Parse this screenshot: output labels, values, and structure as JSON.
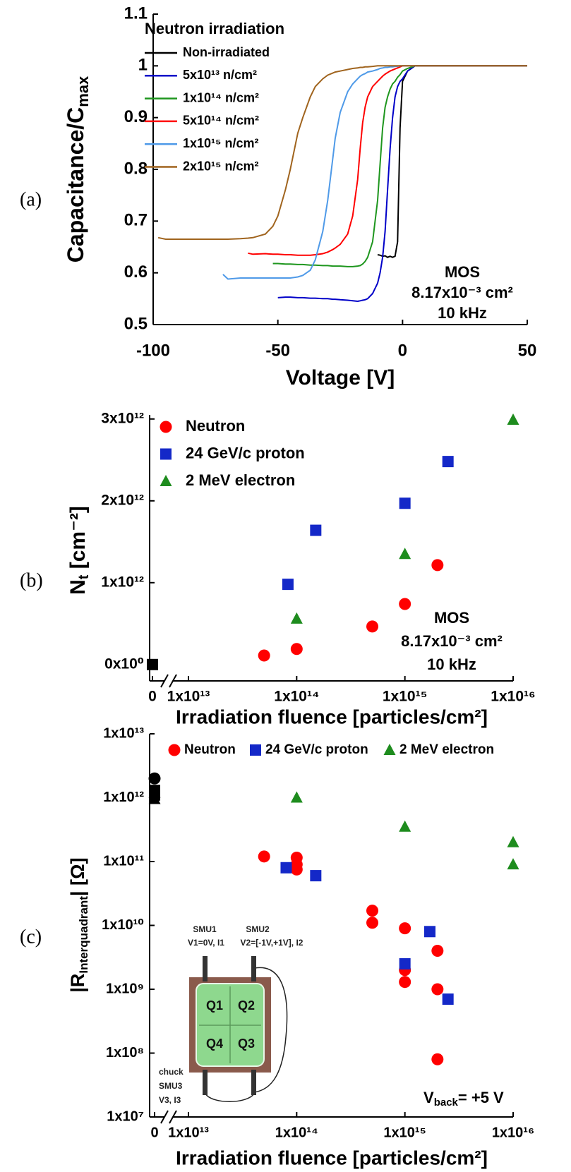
{
  "chart_data": [
    {
      "type": "line",
      "panel_label": "(a)",
      "xlabel": "Voltage [V]",
      "ylabel": [
        "Capacitance/C",
        "max"
      ],
      "legend_title": "Neutron irradiation",
      "legend": "upper left",
      "annotations": [
        "MOS",
        "8.17x10⁻³ cm²",
        "10 kHz"
      ],
      "xlim": [
        -100,
        50
      ],
      "xticks": [
        -100,
        -50,
        0,
        50
      ],
      "ylim": [
        0.5,
        1.1
      ],
      "yticks": [
        0.5,
        0.6,
        0.7,
        0.8,
        0.9,
        1,
        1.1
      ],
      "x": [
        -98,
        -95,
        -90,
        -85,
        -80,
        -75,
        -72,
        -70,
        -65,
        -62,
        -60,
        -55,
        -52,
        -50,
        -47,
        -45,
        -42,
        -40,
        -37,
        -35,
        -32,
        -30,
        -28,
        -27,
        -25,
        -22,
        -20,
        -18,
        -17,
        -16,
        -15,
        -14,
        -12,
        -10,
        -9,
        -8,
        -7,
        -6,
        -5,
        -4,
        -3,
        -2,
        -1,
        0,
        2,
        5,
        10,
        20,
        30,
        40,
        50
      ],
      "series": [
        {
          "name": "Non-irradiated",
          "color": "#000000",
          "values": [
            null,
            null,
            null,
            null,
            null,
            null,
            null,
            null,
            null,
            null,
            null,
            null,
            null,
            null,
            null,
            null,
            null,
            null,
            null,
            null,
            null,
            null,
            null,
            null,
            null,
            null,
            null,
            null,
            null,
            null,
            null,
            null,
            null,
            0.635,
            0.634,
            0.632,
            0.633,
            0.63,
            0.632,
            0.63,
            0.632,
            0.66,
            0.88,
            0.97,
            0.99,
            1,
            1,
            1,
            1,
            1,
            1
          ]
        },
        {
          "name": "5x10¹³ n/cm²",
          "color": "#0000c8",
          "values": [
            null,
            null,
            null,
            null,
            null,
            null,
            null,
            null,
            null,
            null,
            null,
            null,
            null,
            0.552,
            0.553,
            0.553,
            0.552,
            0.552,
            0.551,
            0.551,
            0.55,
            0.55,
            0.549,
            0.549,
            0.548,
            0.547,
            0.546,
            0.545,
            0.546,
            0.547,
            0.548,
            0.55,
            0.56,
            0.58,
            0.6,
            0.63,
            0.68,
            0.76,
            0.84,
            0.9,
            0.94,
            0.96,
            0.97,
            0.975,
            0.99,
            1,
            1,
            1,
            1,
            1,
            1
          ]
        },
        {
          "name": "1x10¹⁴ n/cm²",
          "color": "#1e961e",
          "values": [
            null,
            null,
            null,
            null,
            null,
            null,
            null,
            null,
            null,
            null,
            null,
            null,
            0.618,
            0.618,
            0.617,
            0.617,
            0.616,
            0.616,
            0.615,
            0.615,
            0.614,
            0.614,
            0.613,
            0.613,
            0.613,
            0.612,
            0.612,
            0.613,
            0.614,
            0.617,
            0.622,
            0.63,
            0.66,
            0.74,
            0.81,
            0.88,
            0.92,
            0.94,
            0.955,
            0.965,
            0.97,
            0.978,
            0.983,
            0.99,
            0.995,
            1,
            1,
            1,
            1,
            1,
            1
          ]
        },
        {
          "name": "5x10¹⁴ n/cm²",
          "color": "#ff0000",
          "values": [
            null,
            null,
            null,
            null,
            null,
            null,
            null,
            null,
            null,
            0.638,
            0.636,
            0.637,
            0.636,
            0.636,
            0.635,
            0.635,
            0.634,
            0.634,
            0.634,
            0.635,
            0.637,
            0.64,
            0.645,
            0.648,
            0.655,
            0.675,
            0.71,
            0.78,
            0.84,
            0.89,
            0.92,
            0.94,
            0.96,
            0.97,
            0.975,
            0.98,
            0.984,
            0.987,
            0.99,
            0.992,
            0.994,
            0.996,
            0.998,
            1,
            1,
            1,
            1,
            1,
            1,
            1,
            1
          ]
        },
        {
          "name": "1x10¹⁵ n/cm²",
          "color": "#4f9ae8",
          "values": [
            null,
            null,
            null,
            null,
            null,
            null,
            0.597,
            0.588,
            0.59,
            0.59,
            0.59,
            0.59,
            0.59,
            0.59,
            0.59,
            0.59,
            0.592,
            0.595,
            0.605,
            0.625,
            0.68,
            0.74,
            0.82,
            0.86,
            0.91,
            0.95,
            0.965,
            0.975,
            0.98,
            0.983,
            0.985,
            0.988,
            0.99,
            0.993,
            0.995,
            0.996,
            0.997,
            0.997,
            0.998,
            0.998,
            0.999,
            0.999,
            1,
            1,
            1,
            1,
            1,
            1,
            1,
            1,
            1
          ]
        },
        {
          "name": "2x10¹⁵ n/cm²",
          "color": "#a0641e",
          "values": [
            0.668,
            0.665,
            0.665,
            0.665,
            0.665,
            0.665,
            0.665,
            0.665,
            0.666,
            0.667,
            0.668,
            0.675,
            0.69,
            0.71,
            0.76,
            0.8,
            0.87,
            0.9,
            0.94,
            0.96,
            0.975,
            0.982,
            0.986,
            0.988,
            0.99,
            0.993,
            0.995,
            0.996,
            0.997,
            0.997,
            0.998,
            0.998,
            0.999,
            1,
            1,
            1,
            1,
            1,
            1,
            1,
            1,
            1,
            1,
            1,
            1,
            1,
            1,
            1,
            1,
            1,
            1
          ]
        }
      ]
    },
    {
      "type": "scatter",
      "panel_label": "(b)",
      "xlabel": "Irradiation fluence [particles/cm²]",
      "ylabel": [
        "N",
        "t",
        " [cm⁻²]"
      ],
      "legend": "upper left",
      "annotations": [
        "MOS",
        "8.17x10⁻³ cm²",
        "10 kHz"
      ],
      "xscale": "log",
      "axis_break": true,
      "xlim": [
        0,
        1e+16
      ],
      "xticks": [
        0,
        {
          "value": 10000000000000.0,
          "label": "1x10¹³"
        },
        {
          "value": 100000000000000.0,
          "label": "1x10¹⁴"
        },
        {
          "value": 1000000000000000.0,
          "label": "1x10¹⁵"
        },
        {
          "value": 1e+16,
          "label": "1x10¹⁶"
        }
      ],
      "ylim": [
        -200000000000.0,
        3050000000000.0
      ],
      "yticks": [
        {
          "value": 0,
          "label": "0x10⁰"
        },
        {
          "value": 1000000000000.0,
          "label": "1x10¹²"
        },
        {
          "value": 2000000000000.0,
          "label": "2x10¹²"
        },
        {
          "value": 3000000000000.0,
          "label": "3x10¹²"
        }
      ],
      "series": [
        {
          "name": "Neutron",
          "color": "#ff0000",
          "marker": "circle",
          "x": [
            50000000000000.0,
            100000000000000.0,
            500000000000000.0,
            1000000000000000.0,
            2000000000000000.0
          ],
          "values": [
            110000000000.0,
            190000000000.0,
            465000000000.0,
            740000000000.0,
            1215000000000.0
          ]
        },
        {
          "name": "24 GeV/c proton",
          "color": "#1428c8",
          "marker": "square",
          "x": [
            83000000000000.0,
            150000000000000.0,
            1000000000000000.0,
            2500000000000000.0
          ],
          "values": [
            980000000000.0,
            1640000000000.0,
            1970000000000.0,
            2480000000000.0
          ]
        },
        {
          "name": "2 MeV electron",
          "color": "#1e8c1e",
          "marker": "triangle",
          "x": [
            100000000000000.0,
            1000000000000000.0,
            1e+16
          ],
          "values": [
            560000000000.0,
            1350000000000.0,
            2990000000000.0
          ]
        },
        {
          "color": "#000000",
          "marker": "square",
          "x": [
            0
          ],
          "values": [
            0
          ]
        }
      ]
    },
    {
      "type": "scatter",
      "panel_label": "(c)",
      "xlabel": "Irradiation fluence [particles/cm²]",
      "ylabel": [
        "|R",
        "Interquadrant",
        "| [Ω]"
      ],
      "legend": "top",
      "annotation": [
        "V",
        "back",
        "= +5 V"
      ],
      "inset": {
        "smu1": "SMU1",
        "v1": "V1=0V, I1",
        "smu2": "SMU2",
        "v2": "V2=[-1V,+1V], I2",
        "q1": "Q1",
        "q2": "Q2",
        "q3": "Q3",
        "q4": "Q4",
        "chuck": "chuck",
        "smu3": "SMU3",
        "v3": "V3, I3"
      },
      "xscale": "log",
      "axis_break": true,
      "xlim": [
        0,
        1e+16
      ],
      "xticks": [
        0,
        {
          "value": 10000000000000.0,
          "label": "1x10¹³"
        },
        {
          "value": 100000000000000.0,
          "label": "1x10¹⁴"
        },
        {
          "value": 1000000000000000.0,
          "label": "1x10¹⁵"
        },
        {
          "value": 1e+16,
          "label": "1x10¹⁶"
        }
      ],
      "yscale": "log",
      "ylim": [
        10000000.0,
        10000000000000.0
      ],
      "yticks": [
        {
          "value": 10000000.0,
          "label": "1x10⁷"
        },
        {
          "value": 100000000.0,
          "label": "1x10⁸"
        },
        {
          "value": 1000000000.0,
          "label": "1x10⁹"
        },
        {
          "value": 10000000000.0,
          "label": "1x10¹⁰"
        },
        {
          "value": 100000000000.0,
          "label": "1x10¹¹"
        },
        {
          "value": 1000000000000.0,
          "label": "1x10¹²"
        },
        {
          "value": 10000000000000.0,
          "label": "1x10¹³"
        }
      ],
      "series": [
        {
          "name": "Neutron",
          "color": "#ff0000",
          "marker": "circle",
          "x": [
            50000000000000.0,
            100000000000000.0,
            100000000000000.0,
            100000000000000.0,
            500000000000000.0,
            500000000000000.0,
            1000000000000000.0,
            1000000000000000.0,
            1000000000000000.0,
            2000000000000000.0,
            2000000000000000.0,
            2000000000000000.0
          ],
          "values": [
            120000000000.0,
            115000000000.0,
            90000000000.0,
            75000000000.0,
            17000000000.0,
            11000000000.0,
            9000000000.0,
            2000000000.0,
            1300000000.0,
            4000000000.0,
            1000000000.0,
            80000000.0
          ]
        },
        {
          "name": "24 GeV/c proton",
          "color": "#1428c8",
          "marker": "square",
          "x": [
            80000000000000.0,
            150000000000000.0,
            1000000000000000.0,
            1700000000000000.0,
            2500000000000000.0
          ],
          "values": [
            80000000000.0,
            60000000000.0,
            2500000000.0,
            8000000000.0,
            700000000.0
          ]
        },
        {
          "name": "2 MeV electron",
          "color": "#1e8c1e",
          "marker": "triangle",
          "x": [
            100000000000000.0,
            1000000000000000.0,
            1e+16,
            1e+16
          ],
          "values": [
            1000000000000.0,
            350000000000.0,
            200000000000.0,
            90000000000.0
          ]
        },
        {
          "color": "#000000",
          "marker": "circle",
          "x": [
            0
          ],
          "values": [
            2000000000000.0
          ]
        },
        {
          "color": "#000000",
          "marker": "square",
          "x": [
            0,
            0
          ],
          "values": [
            1300000000000.0,
            1100000000000.0
          ]
        },
        {
          "color": "#000000",
          "marker": "triangle",
          "x": [
            0,
            0
          ],
          "values": [
            1200000000000.0,
            950000000000.0
          ]
        }
      ]
    }
  ]
}
